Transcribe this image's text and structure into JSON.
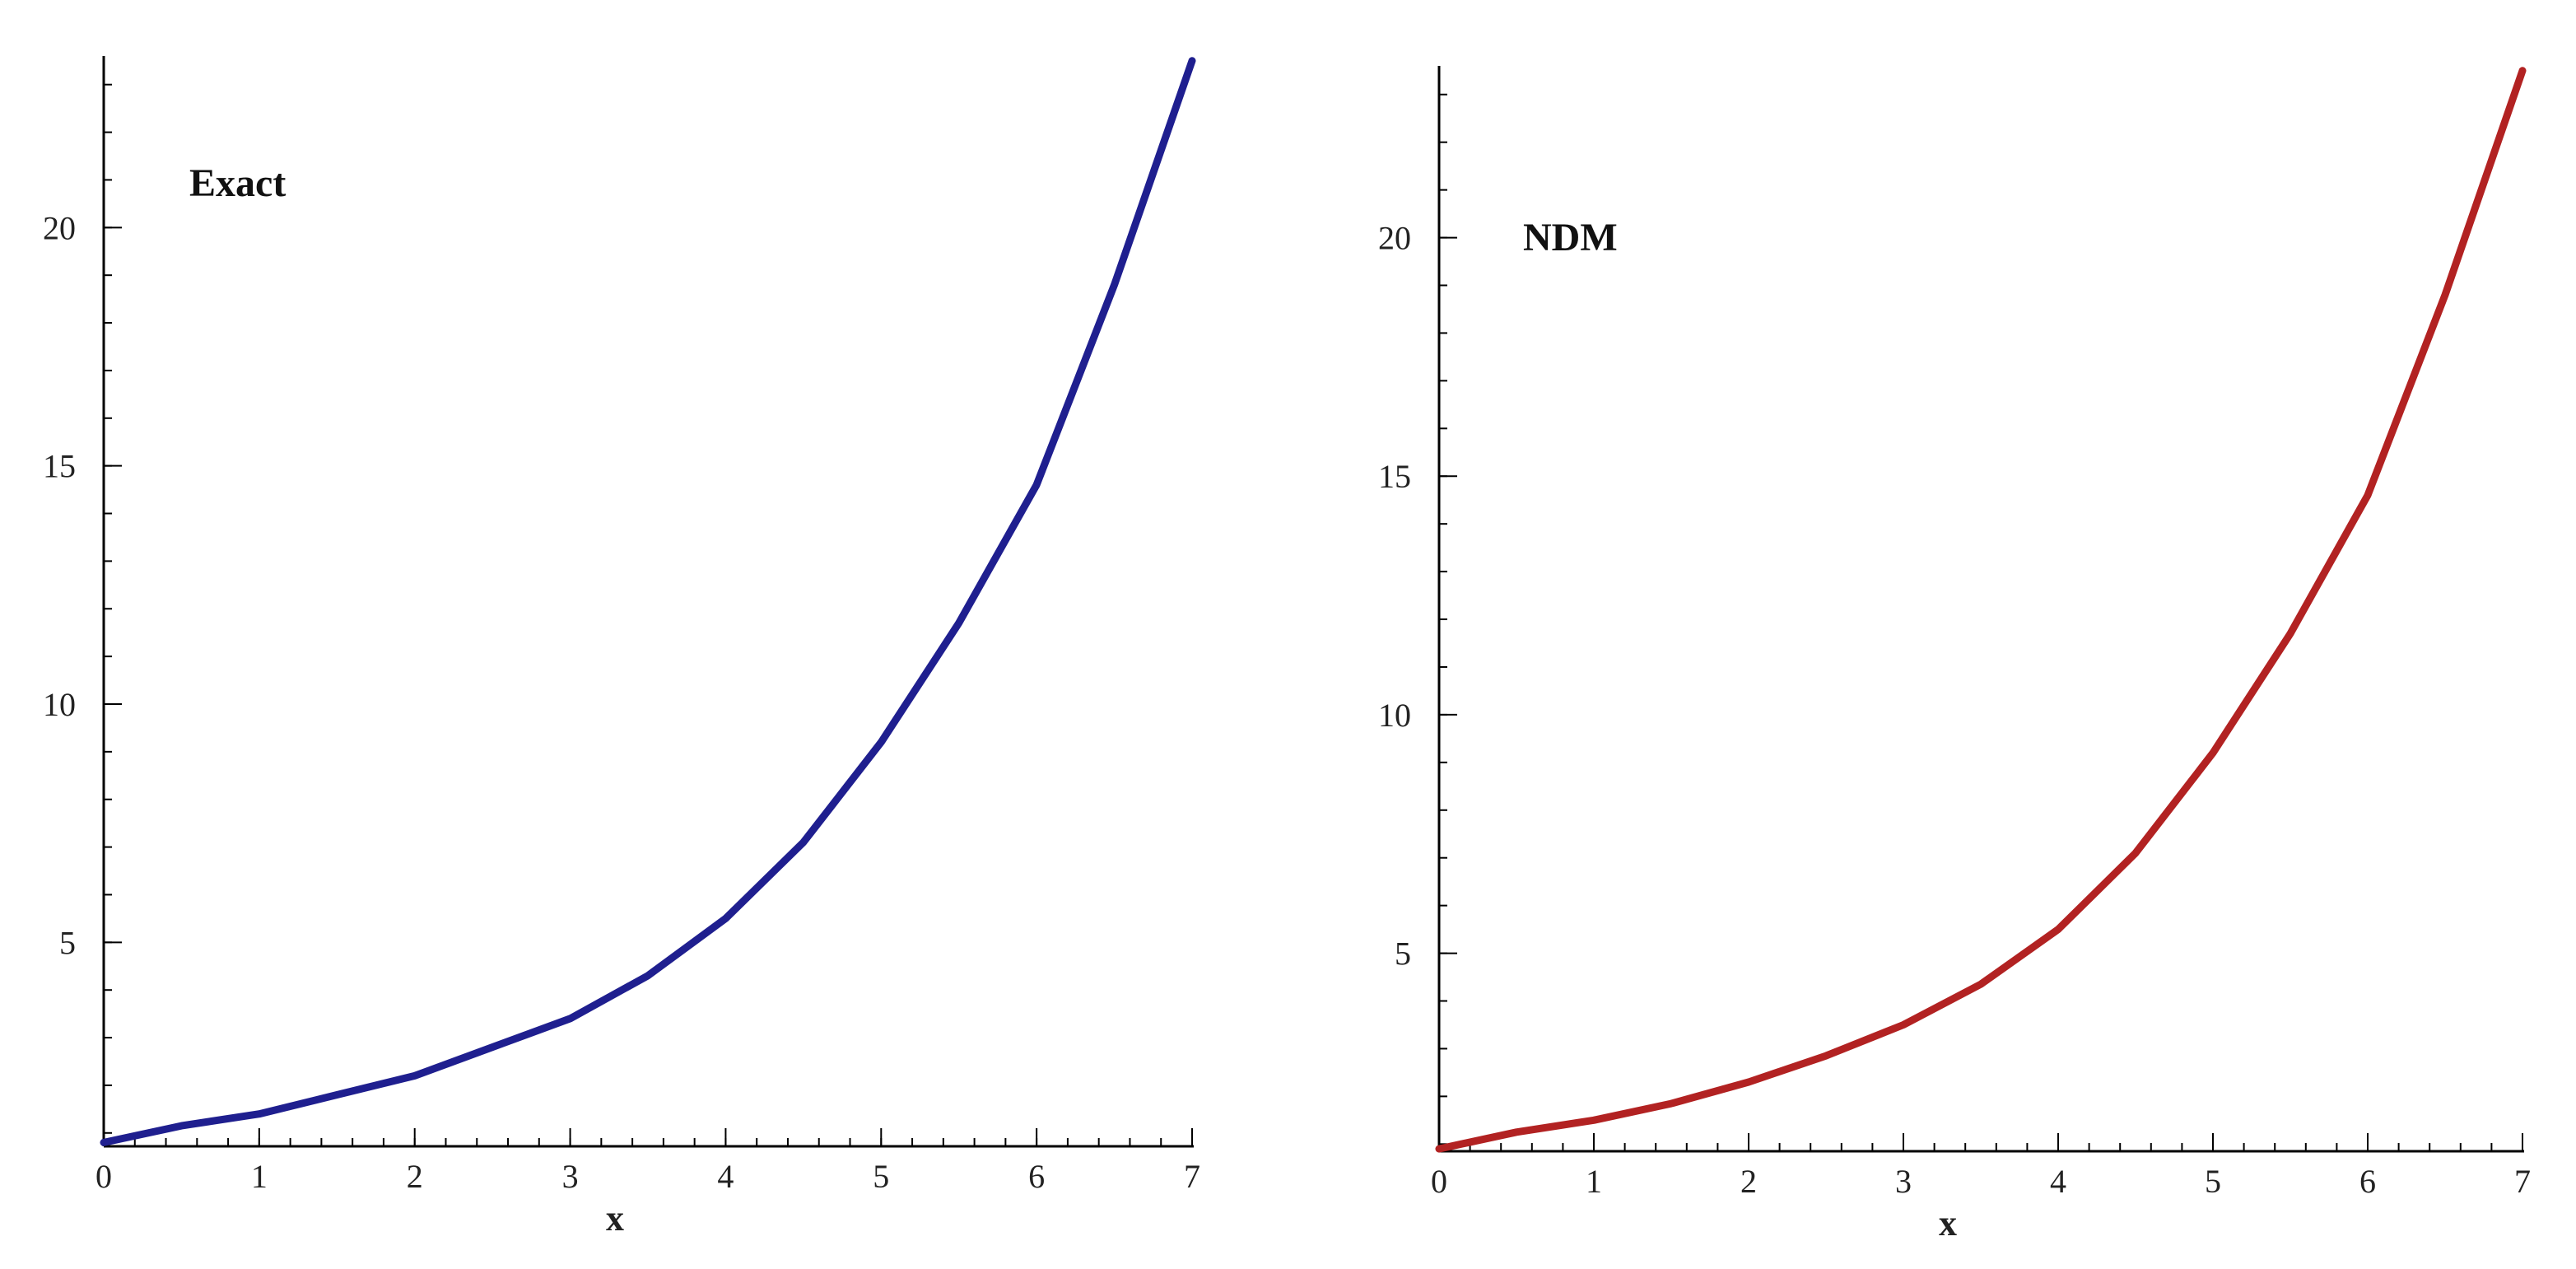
{
  "chart_data": [
    {
      "type": "line",
      "title": "",
      "annotation": "Exact",
      "xlabel": "x",
      "ylabel": "",
      "xlim": [
        0,
        7
      ],
      "ylim": [
        0.72,
        23.6
      ],
      "xticks": [
        "0",
        "1",
        "2",
        "3",
        "4",
        "5",
        "6",
        "7"
      ],
      "yticks": [
        "5",
        "10",
        "15",
        "20"
      ],
      "x_minor_step": 0.2,
      "y_minor_step": 1,
      "grid": false,
      "legend": "none",
      "series": [
        {
          "color": "#1f1f8f",
          "x": [
            0,
            0.5,
            1,
            1.5,
            2,
            2.5,
            3,
            3.5,
            4,
            4.5,
            5,
            5.5,
            6,
            6.5,
            7
          ],
          "y": [
            0.8,
            1.15,
            1.4,
            1.8,
            2.2,
            2.8,
            3.4,
            4.3,
            5.5,
            7.1,
            9.2,
            11.7,
            14.6,
            18.8,
            23.5
          ]
        }
      ]
    },
    {
      "type": "line",
      "title": "",
      "annotation": "NDM",
      "xlabel": "x",
      "ylabel": "",
      "xlim": [
        0,
        7
      ],
      "ylim": [
        0.85,
        23.6
      ],
      "xticks": [
        "0",
        "1",
        "2",
        "3",
        "4",
        "5",
        "6",
        "7"
      ],
      "yticks": [
        "5",
        "10",
        "15",
        "20"
      ],
      "x_minor_step": 0.2,
      "y_minor_step": 1,
      "grid": false,
      "legend": "none",
      "series": [
        {
          "color": "#b22222",
          "x": [
            0,
            0.5,
            1,
            1.5,
            2,
            2.5,
            3,
            3.5,
            4,
            4.5,
            5,
            5.5,
            6,
            6.5,
            7
          ],
          "y": [
            0.9,
            1.25,
            1.5,
            1.85,
            2.3,
            2.85,
            3.5,
            4.35,
            5.5,
            7.1,
            9.2,
            11.7,
            14.6,
            18.8,
            23.5
          ]
        }
      ]
    }
  ]
}
